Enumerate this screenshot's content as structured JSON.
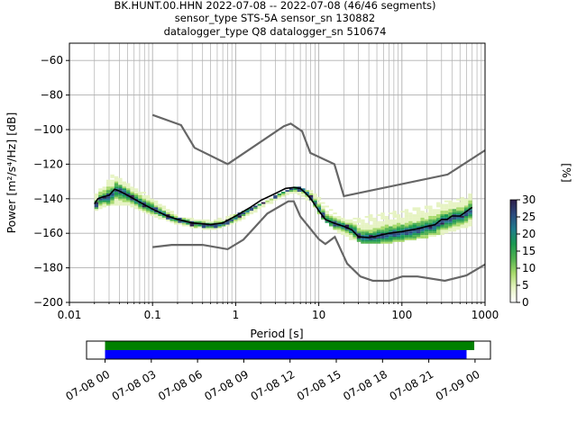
{
  "chart_data": [
    {
      "type": "heatmap",
      "title_lines": [
        "BK.HUNT.00.HHN   2022-07-08 -- 2022-07-08  (46/46 segments)",
        "sensor_type STS-5A sensor_sn 130882",
        "datalogger_type Q8 datalogger_sn 510674"
      ],
      "xlabel": "Period [s]",
      "ylabel": "Power [m²/s⁴/Hz] [dB]",
      "xscale": "log",
      "xlim": [
        0.01,
        1000
      ],
      "ylim": [
        -200,
        -50
      ],
      "grid": true,
      "x_tick_labels": [
        "0.01",
        "0.1",
        "1",
        "10",
        "100",
        "1000"
      ],
      "x_ticks": [
        0.01,
        0.1,
        1,
        10,
        100,
        1000
      ],
      "y_ticks": [
        -60,
        -80,
        -100,
        -120,
        -140,
        -160,
        -180,
        -200
      ],
      "y_tick_labels": [
        "−60",
        "−80",
        "−100",
        "−120",
        "−140",
        "−160",
        "−180",
        "−200"
      ],
      "colorbar": {
        "label": "[%]",
        "range": [
          0,
          30
        ],
        "ticks": [
          0,
          5,
          10,
          15,
          20,
          25,
          30
        ],
        "tick_labels": [
          "0",
          "5",
          "10",
          "15",
          "20",
          "25",
          "30"
        ],
        "colors": [
          "#ffffff",
          "#e6f3c2",
          "#a6d96a",
          "#4fb04f",
          "#1a9850",
          "#1f7a8c",
          "#2b4a7e",
          "#2d1e4a"
        ]
      },
      "noise_models": {
        "color": "#666666",
        "high": {
          "x": [
            0.1,
            0.22,
            0.32,
            0.8,
            3.8,
            4.6,
            6.3,
            7.9,
            15.4,
            20,
            354.8,
            1000
          ],
          "y": [
            -91.5,
            -97.4,
            -110.5,
            -120,
            -98,
            -96.5,
            -101,
            -113.5,
            -120,
            -138.5,
            -126,
            -112
          ]
        },
        "low": {
          "x": [
            0.1,
            0.17,
            0.4,
            0.8,
            1.24,
            2.4,
            4.3,
            5,
            6,
            10,
            12,
            15.6,
            21.9,
            31.6,
            45,
            70,
            101,
            154,
            328,
            600,
            1000
          ],
          "y": [
            -168,
            -166.7,
            -166.7,
            -169.2,
            -163.7,
            -148.6,
            -141.5,
            -141.5,
            -150.2,
            -163.4,
            -166.2,
            -162.1,
            -177.5,
            -185,
            -187.5,
            -187.5,
            -185,
            -185,
            -187.5,
            -184.4,
            -178
          ]
        }
      },
      "mean_curve": {
        "color": "#000000",
        "x": [
          0.02,
          0.022,
          0.025,
          0.03,
          0.035,
          0.04,
          0.05,
          0.07,
          0.1,
          0.15,
          0.2,
          0.3,
          0.5,
          0.7,
          1,
          1.5,
          2,
          3,
          4,
          5,
          6,
          7,
          8,
          10,
          12,
          15,
          20,
          25,
          30,
          40,
          50,
          70,
          100,
          130,
          150,
          200,
          250,
          300,
          350,
          400,
          500,
          700
        ],
        "y": [
          -143,
          -140,
          -139,
          -138,
          -134.5,
          -135.5,
          -138,
          -142,
          -146,
          -150,
          -152,
          -154,
          -155,
          -154,
          -150,
          -145,
          -141,
          -137,
          -134,
          -133.5,
          -134,
          -137,
          -140,
          -147,
          -152,
          -154,
          -156,
          -158,
          -162,
          -162.5,
          -161.5,
          -160,
          -159,
          -158,
          -157.5,
          -156,
          -155,
          -152,
          -152,
          -150,
          -150,
          -145
        ]
      },
      "hist_band": {
        "x": [
          0.02,
          0.03,
          0.05,
          0.1,
          0.2,
          0.5,
          1,
          2,
          3,
          5,
          8,
          10,
          15,
          20,
          30,
          50,
          100,
          200,
          300,
          500,
          700
        ],
        "low": [
          -146,
          -143,
          -144,
          -150,
          -155,
          -158,
          -153,
          -145,
          -140,
          -136,
          -142,
          -150,
          -158,
          -162,
          -165,
          -166,
          -164,
          -162,
          -160,
          -157,
          -155
        ],
        "high": [
          -136,
          -125,
          -130,
          -140,
          -150,
          -152,
          -148,
          -142,
          -137,
          -132,
          -135,
          -140,
          -148,
          -152,
          -150,
          -148,
          -146,
          -143,
          -141,
          -139,
          -136
        ]
      }
    },
    {
      "type": "timeline",
      "x_tick_labels": [
        "07-08 00",
        "07-08 03",
        "07-08 06",
        "07-08 09",
        "07-08 12",
        "07-08 15",
        "07-08 18",
        "07-08 21",
        "07-09 00"
      ],
      "x_ticks_hours": [
        0,
        3,
        6,
        9,
        12,
        15,
        18,
        21,
        24
      ],
      "xlim_hours": [
        -1.2,
        25
      ],
      "bars": [
        {
          "color": "#008000",
          "start_hours": 0,
          "end_hours": 23.95,
          "level": "upper"
        },
        {
          "color": "#0000ff",
          "start_hours": 0,
          "end_hours": 23.45,
          "level": "lower"
        }
      ]
    }
  ]
}
